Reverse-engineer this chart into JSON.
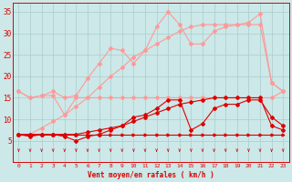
{
  "x": [
    0,
    1,
    2,
    3,
    4,
    5,
    6,
    7,
    8,
    9,
    10,
    11,
    12,
    13,
    14,
    15,
    16,
    17,
    18,
    19,
    20,
    21,
    22,
    23
  ],
  "line_flat_dark": [
    6.5,
    6.5,
    6.5,
    6.5,
    6.5,
    6.5,
    6.5,
    6.5,
    6.5,
    6.5,
    6.5,
    6.5,
    6.5,
    6.5,
    6.5,
    6.5,
    6.5,
    6.5,
    6.5,
    6.5,
    6.5,
    6.5,
    6.5,
    6.5
  ],
  "line_ramp_dark": [
    6.5,
    6.5,
    6.5,
    6.5,
    6.5,
    6.5,
    7.0,
    7.5,
    8.0,
    8.5,
    9.5,
    10.5,
    11.5,
    12.5,
    13.5,
    14.0,
    14.5,
    15.0,
    15.0,
    15.0,
    15.0,
    15.0,
    8.5,
    7.5
  ],
  "line_wavy_dark": [
    6.5,
    6.0,
    6.5,
    6.5,
    6.0,
    5.0,
    6.0,
    6.5,
    7.5,
    8.5,
    10.5,
    11.0,
    12.5,
    14.5,
    14.5,
    7.5,
    9.0,
    12.5,
    13.5,
    13.5,
    14.5,
    14.5,
    10.5,
    8.5
  ],
  "line_flat_light": [
    16.5,
    15.0,
    15.5,
    15.5,
    11.0,
    15.0,
    15.0,
    15.0,
    15.0,
    15.0,
    15.0,
    15.0,
    15.0,
    15.0,
    15.0,
    15.0,
    15.0,
    15.0,
    15.0,
    15.0,
    15.0,
    15.0,
    15.0,
    16.5
  ],
  "line_ramp_light": [
    6.5,
    6.5,
    8.0,
    9.5,
    11.0,
    13.0,
    15.0,
    17.5,
    20.0,
    22.0,
    24.5,
    26.0,
    27.5,
    29.0,
    30.5,
    31.5,
    32.0,
    32.0,
    32.0,
    32.0,
    32.0,
    32.0,
    18.5,
    16.5
  ],
  "line_peak_light": [
    16.5,
    15.0,
    15.5,
    16.5,
    15.0,
    15.5,
    19.5,
    23.0,
    26.5,
    26.0,
    23.0,
    26.0,
    31.5,
    35.0,
    32.0,
    27.5,
    27.5,
    30.5,
    31.5,
    32.0,
    32.5,
    34.5,
    18.5,
    16.5
  ],
  "bg_color": "#cce8e8",
  "grid_color": "#aacccc",
  "line_color_dark": "#dd0000",
  "line_color_light": "#ff9999",
  "xlabel": "Vent moyen/en rafales ( km/h )",
  "ylim": [
    0,
    37
  ],
  "xlim": [
    -0.5,
    23.5
  ],
  "yticks": [
    5,
    10,
    15,
    20,
    25,
    30,
    35
  ],
  "xticks": [
    0,
    1,
    2,
    3,
    4,
    5,
    6,
    7,
    8,
    9,
    10,
    11,
    12,
    13,
    14,
    15,
    16,
    17,
    18,
    19,
    20,
    21,
    22,
    23
  ],
  "arrow_dirs": [
    225,
    210,
    270,
    225,
    225,
    270,
    270,
    270,
    270,
    225,
    270,
    225,
    270,
    270,
    270,
    270,
    270,
    225,
    225,
    270,
    225,
    270,
    270,
    270
  ]
}
